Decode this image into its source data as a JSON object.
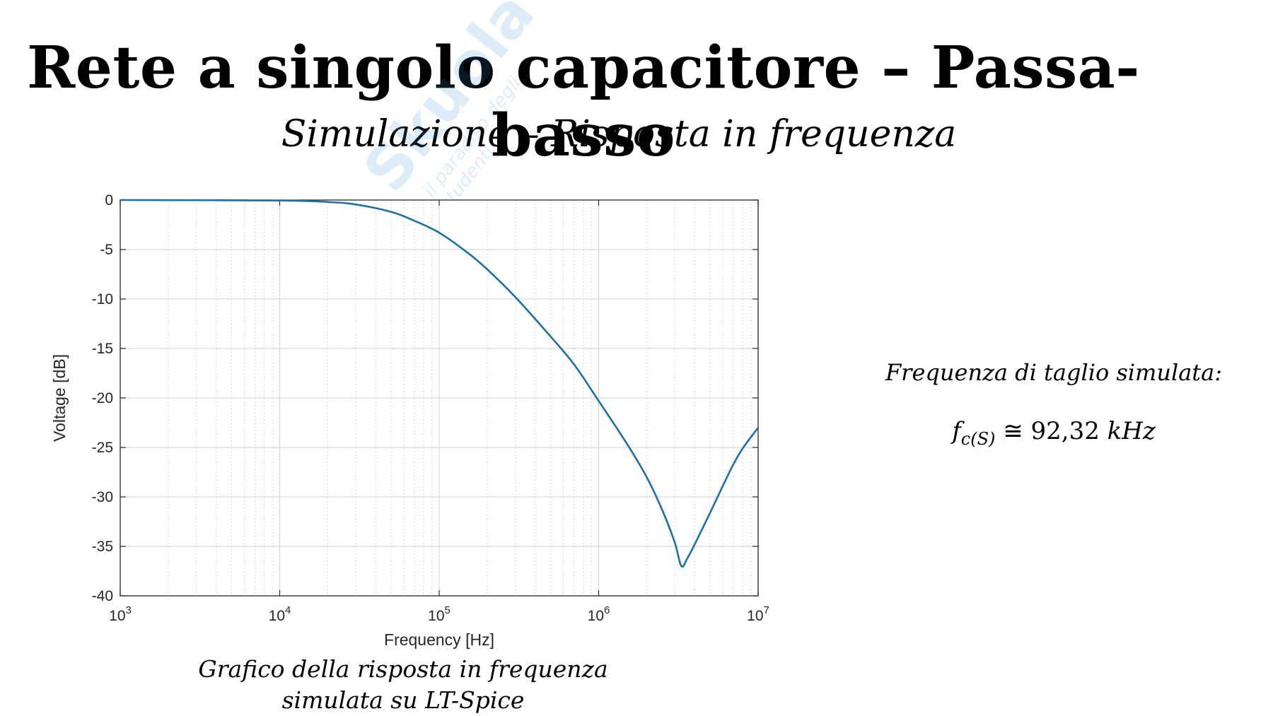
{
  "slide": {
    "title": "Rete a singolo capacitore – Passa-basso",
    "subtitle": "Simulazione – Risposta in frequenza",
    "caption_line1": "Grafico della risposta in frequenza",
    "caption_line2": "simulata su LT-Spice",
    "side_label": "Frequenza di taglio simulata:",
    "formula": {
      "symbol": "f",
      "subscript": "c(S)",
      "relation": " ≅ 92,32 ",
      "unit": "kHz"
    }
  },
  "watermark": {
    "main": "Skuola",
    "sub": "il paradiso degli studenti"
  },
  "chart_data": {
    "type": "line",
    "xlabel": "Frequency [Hz]",
    "ylabel": "Voltage [dB]",
    "xscale": "log",
    "xlim": [
      1000,
      10000000
    ],
    "ylim": [
      -40,
      0
    ],
    "grid": true,
    "x_ticks": [
      {
        "base": "10",
        "exp": "3",
        "value": 1000
      },
      {
        "base": "10",
        "exp": "4",
        "value": 10000
      },
      {
        "base": "10",
        "exp": "5",
        "value": 100000
      },
      {
        "base": "10",
        "exp": "6",
        "value": 1000000
      },
      {
        "base": "10",
        "exp": "7",
        "value": 10000000
      }
    ],
    "y_ticks": [
      "0",
      "-5",
      "-10",
      "-15",
      "-20",
      "-25",
      "-30",
      "-35",
      "-40"
    ],
    "y_tick_values": [
      0,
      -5,
      -10,
      -15,
      -20,
      -25,
      -30,
      -35,
      -40
    ],
    "series": [
      {
        "color": "#1f6fa8",
        "x": [
          1000,
          10000,
          20000,
          30000,
          50000,
          70000,
          100000,
          150000,
          200000,
          300000,
          500000,
          700000,
          1000000,
          1500000,
          2000000,
          2500000,
          3000000,
          3300000,
          3600000,
          4000000,
          5000000,
          6000000,
          7000000,
          8000000,
          10000000
        ],
        "y": [
          0,
          -0.05,
          -0.2,
          -0.45,
          -1.2,
          -2.1,
          -3.3,
          -5.3,
          -7.0,
          -9.8,
          -13.8,
          -16.6,
          -20.3,
          -24.6,
          -28.0,
          -31.3,
          -34.6,
          -37.0,
          -36.2,
          -34.8,
          -31.6,
          -28.9,
          -26.7,
          -25.1,
          -23.0
        ]
      }
    ]
  }
}
